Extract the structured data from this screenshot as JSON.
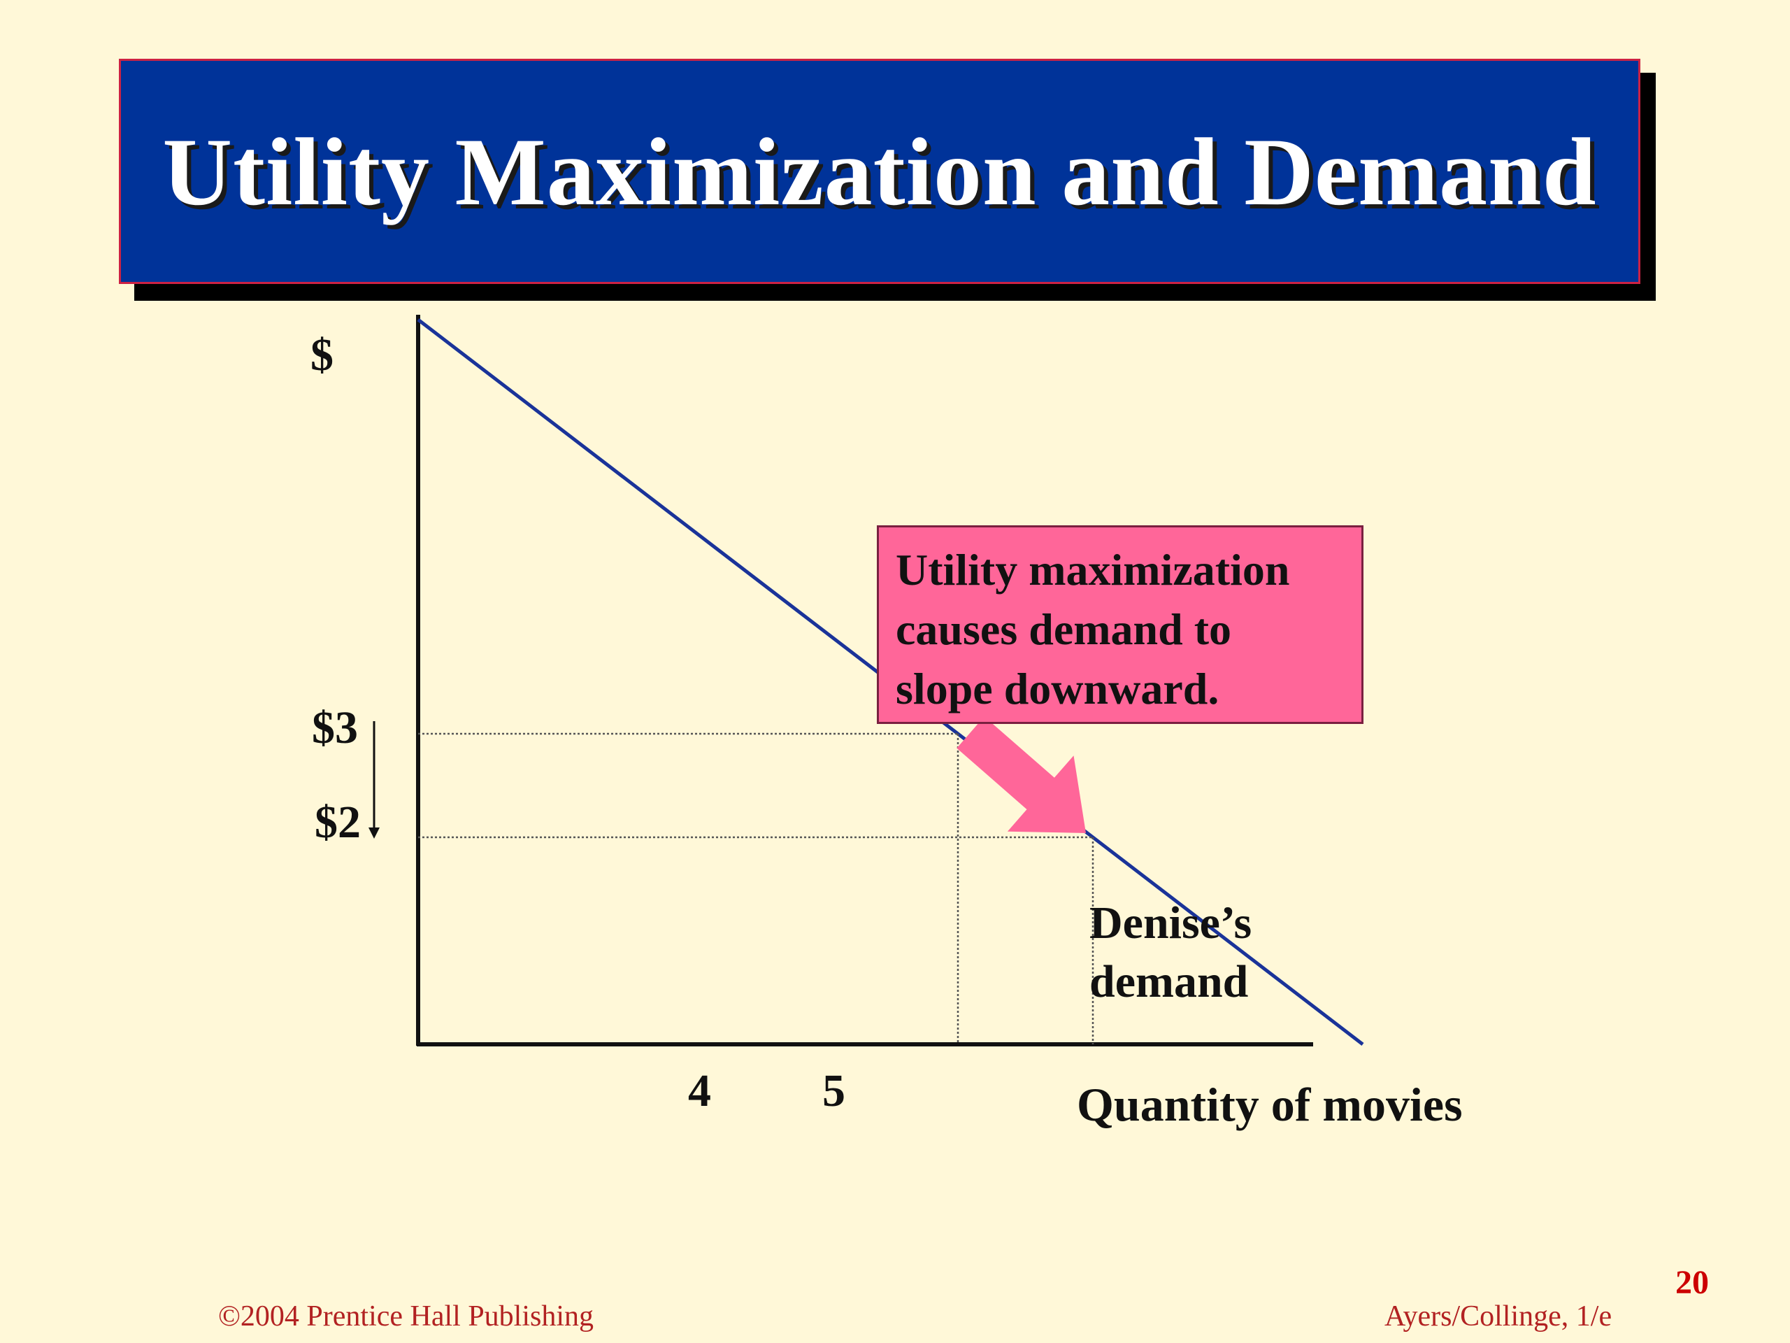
{
  "slide": {
    "title": "Utility Maximization and Demand",
    "footer_left": "©2004 Prentice Hall Publishing",
    "footer_right": "Ayers/Collinge, 1/e",
    "page_number": "20"
  },
  "chart_data": {
    "type": "line",
    "title": "Utility Maximization and Demand",
    "xlabel": "Quantity of movies",
    "ylabel": "$",
    "x_ticks": [
      "4",
      "5"
    ],
    "y_ticks": [
      "$3",
      "$2"
    ],
    "series": [
      {
        "name": "Denise’s demand",
        "points": [
          {
            "x": 4,
            "y": 3
          },
          {
            "x": 5,
            "y": 2
          }
        ]
      }
    ],
    "curve_label_lines": [
      "Denise’s",
      "demand"
    ],
    "annotation_lines": [
      "Utility maximization",
      "causes demand to",
      "slope downward."
    ],
    "colors": {
      "demand_line": "#1a3399",
      "arrow": "#ff6699",
      "callout_fill": "#ff6699",
      "title_bg": "#003399",
      "background": "#fff8d8"
    },
    "grid": false,
    "guide_lines": "dotted"
  }
}
